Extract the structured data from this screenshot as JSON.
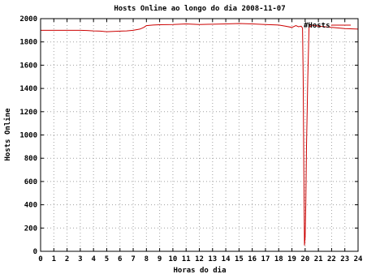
{
  "chart_data": {
    "type": "line",
    "title": "Hosts Online ao longo do dia 2008-11-07",
    "xlabel": "Horas do dia",
    "ylabel": "Hosts Online",
    "xlim": [
      0,
      24
    ],
    "ylim": [
      0,
      2000
    ],
    "x_ticks": [
      0,
      1,
      2,
      3,
      4,
      5,
      6,
      7,
      8,
      9,
      10,
      11,
      12,
      13,
      14,
      15,
      16,
      17,
      18,
      19,
      20,
      21,
      22,
      23,
      24
    ],
    "y_ticks": [
      0,
      200,
      400,
      600,
      800,
      1000,
      1200,
      1400,
      1600,
      1800,
      2000
    ],
    "grid": true,
    "legend": "top-right",
    "series": [
      {
        "name": "#Hosts",
        "color": "#cc0000",
        "x": [
          0,
          1,
          2,
          3,
          3.5,
          4,
          4.5,
          5,
          5.5,
          6,
          6.5,
          7,
          7.5,
          7.8,
          8,
          8.5,
          9,
          10,
          11,
          12,
          13,
          14,
          15,
          16,
          17,
          18,
          18.5,
          19,
          19.3,
          19.5,
          19.7,
          19.8,
          19.85,
          19.9,
          19.95,
          20.0,
          20.05,
          20.1,
          20.2,
          20.3,
          20.4,
          20.5,
          21,
          22,
          23,
          24
        ],
        "y": [
          1900,
          1900,
          1900,
          1900,
          1898,
          1895,
          1893,
          1888,
          1890,
          1893,
          1895,
          1900,
          1910,
          1925,
          1940,
          1945,
          1948,
          1950,
          1955,
          1950,
          1952,
          1955,
          1958,
          1955,
          1950,
          1945,
          1935,
          1925,
          1940,
          1930,
          1935,
          1920,
          1500,
          700,
          50,
          120,
          400,
          900,
          1500,
          1950,
          1930,
          1945,
          1935,
          1925,
          1915,
          1910
        ]
      }
    ]
  }
}
